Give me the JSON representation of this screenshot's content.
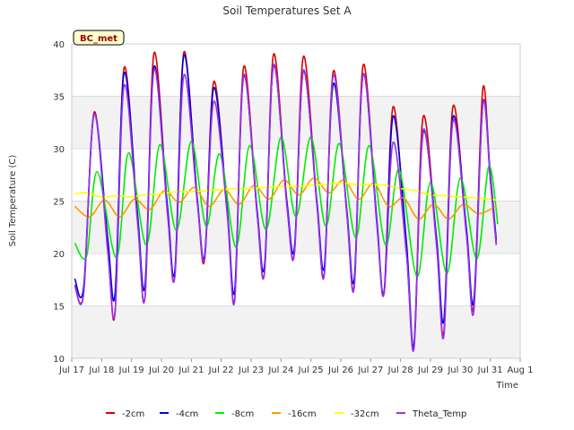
{
  "chart_data": {
    "type": "line",
    "title": "Soil Temperatures Set A",
    "xlabel": "Time",
    "ylabel": "Soil Temperature (C)",
    "badge": "BC_met",
    "xlim": [
      17,
      32
    ],
    "ylim": [
      10,
      40
    ],
    "x_ticks": [
      {
        "value": 17,
        "label": "Jul 17"
      },
      {
        "value": 18,
        "label": "Jul 18"
      },
      {
        "value": 19,
        "label": "Jul 19"
      },
      {
        "value": 20,
        "label": "Jul 20"
      },
      {
        "value": 21,
        "label": "Jul 21"
      },
      {
        "value": 22,
        "label": "Jul 22"
      },
      {
        "value": 23,
        "label": "Jul 23"
      },
      {
        "value": 24,
        "label": "Jul 24"
      },
      {
        "value": 25,
        "label": "Jul 25"
      },
      {
        "value": 26,
        "label": "Jul 26"
      },
      {
        "value": 27,
        "label": "Jul 27"
      },
      {
        "value": 28,
        "label": "Jul 28"
      },
      {
        "value": 29,
        "label": "Jul 29"
      },
      {
        "value": 30,
        "label": "Jul 30"
      },
      {
        "value": 31,
        "label": "Jul 31"
      },
      {
        "value": 32,
        "label": "Aug 1"
      }
    ],
    "y_ticks": [
      10,
      15,
      20,
      25,
      30,
      35,
      40
    ],
    "grid": "horizontal",
    "background_bands": true,
    "legend_position": "bottom",
    "series": [
      {
        "name": "-2cm",
        "color": "#dd0000",
        "points": [
          [
            17.1,
            17.0
          ],
          [
            17.4,
            16.3
          ],
          [
            17.75,
            33.5
          ],
          [
            18.2,
            20.6
          ],
          [
            18.45,
            14.4
          ],
          [
            18.75,
            37.7
          ],
          [
            19.2,
            23.4
          ],
          [
            19.45,
            15.9
          ],
          [
            19.75,
            39.1
          ],
          [
            20.2,
            24.2
          ],
          [
            20.45,
            17.9
          ],
          [
            20.75,
            39.2
          ],
          [
            21.2,
            25.0
          ],
          [
            21.45,
            19.5
          ],
          [
            21.75,
            36.4
          ],
          [
            22.2,
            24.0
          ],
          [
            22.45,
            15.7
          ],
          [
            22.75,
            37.8
          ],
          [
            23.2,
            23.9
          ],
          [
            23.45,
            18.3
          ],
          [
            23.75,
            39.0
          ],
          [
            24.2,
            24.6
          ],
          [
            24.45,
            20.2
          ],
          [
            24.75,
            38.8
          ],
          [
            25.2,
            24.8
          ],
          [
            25.45,
            18.2
          ],
          [
            25.75,
            37.4
          ],
          [
            26.2,
            23.9
          ],
          [
            26.45,
            17.0
          ],
          [
            26.75,
            38.0
          ],
          [
            27.2,
            23.1
          ],
          [
            27.45,
            16.3
          ],
          [
            27.75,
            34.0
          ],
          [
            28.2,
            20.0
          ],
          [
            28.45,
            11.4
          ],
          [
            28.75,
            33.0
          ],
          [
            29.2,
            21.0
          ],
          [
            29.45,
            12.6
          ],
          [
            29.75,
            34.0
          ],
          [
            30.2,
            22.0
          ],
          [
            30.45,
            15.0
          ],
          [
            30.75,
            35.7
          ],
          [
            31.0,
            27.0
          ],
          [
            31.2,
            21.0
          ]
        ]
      },
      {
        "name": "-4cm",
        "color": "#0000dd",
        "points": [
          [
            17.1,
            17.6
          ],
          [
            17.4,
            16.8
          ],
          [
            17.75,
            33.3
          ],
          [
            18.2,
            21.5
          ],
          [
            18.45,
            16.2
          ],
          [
            18.75,
            37.2
          ],
          [
            19.2,
            23.8
          ],
          [
            19.45,
            17.0
          ],
          [
            19.75,
            37.8
          ],
          [
            20.2,
            24.5
          ],
          [
            20.45,
            18.4
          ],
          [
            20.75,
            38.9
          ],
          [
            21.2,
            25.2
          ],
          [
            21.45,
            19.9
          ],
          [
            21.75,
            35.8
          ],
          [
            22.2,
            24.3
          ],
          [
            22.45,
            16.5
          ],
          [
            22.75,
            36.9
          ],
          [
            23.2,
            24.1
          ],
          [
            23.45,
            18.9
          ],
          [
            23.75,
            37.9
          ],
          [
            24.2,
            24.9
          ],
          [
            24.45,
            20.6
          ],
          [
            24.75,
            37.4
          ],
          [
            25.2,
            25.0
          ],
          [
            25.45,
            18.8
          ],
          [
            25.75,
            36.2
          ],
          [
            26.2,
            24.1
          ],
          [
            26.45,
            17.6
          ],
          [
            26.75,
            37.1
          ],
          [
            27.2,
            23.4
          ],
          [
            27.45,
            16.4
          ],
          [
            27.75,
            33.1
          ],
          [
            28.2,
            20.9
          ],
          [
            28.45,
            11.3
          ],
          [
            28.75,
            31.5
          ],
          [
            29.2,
            21.5
          ],
          [
            29.45,
            13.7
          ],
          [
            29.75,
            33.0
          ],
          [
            30.2,
            22.4
          ],
          [
            30.45,
            15.5
          ],
          [
            30.75,
            34.3
          ],
          [
            31.0,
            27.5
          ],
          [
            31.2,
            21.3
          ]
        ]
      },
      {
        "name": "-8cm",
        "color": "#00ee00",
        "points": [
          [
            17.1,
            21.0
          ],
          [
            17.5,
            19.8
          ],
          [
            17.85,
            27.8
          ],
          [
            18.5,
            19.6
          ],
          [
            18.9,
            29.6
          ],
          [
            19.5,
            20.8
          ],
          [
            19.95,
            30.4
          ],
          [
            20.5,
            22.2
          ],
          [
            21.0,
            30.7
          ],
          [
            21.5,
            22.6
          ],
          [
            21.95,
            29.5
          ],
          [
            22.5,
            20.6
          ],
          [
            22.95,
            30.3
          ],
          [
            23.5,
            22.3
          ],
          [
            24.0,
            31.1
          ],
          [
            24.5,
            23.5
          ],
          [
            25.0,
            31.1
          ],
          [
            25.5,
            22.6
          ],
          [
            25.95,
            30.5
          ],
          [
            26.5,
            21.5
          ],
          [
            26.95,
            30.3
          ],
          [
            27.5,
            20.8
          ],
          [
            27.95,
            28.0
          ],
          [
            28.55,
            17.8
          ],
          [
            29.0,
            26.8
          ],
          [
            29.55,
            18.1
          ],
          [
            30.0,
            27.2
          ],
          [
            30.55,
            19.5
          ],
          [
            30.95,
            28.3
          ],
          [
            31.25,
            22.8
          ]
        ]
      },
      {
        "name": "-16cm",
        "color": "#ff9900",
        "points": [
          [
            17.1,
            24.5
          ],
          [
            17.6,
            23.5
          ],
          [
            18.1,
            25.1
          ],
          [
            18.6,
            23.5
          ],
          [
            19.1,
            25.2
          ],
          [
            19.6,
            24.2
          ],
          [
            20.1,
            26.0
          ],
          [
            20.6,
            24.9
          ],
          [
            21.1,
            26.3
          ],
          [
            21.6,
            24.5
          ],
          [
            22.1,
            26.1
          ],
          [
            22.6,
            24.7
          ],
          [
            23.1,
            26.5
          ],
          [
            23.6,
            25.2
          ],
          [
            24.1,
            27.0
          ],
          [
            24.6,
            25.6
          ],
          [
            25.1,
            27.2
          ],
          [
            25.6,
            25.8
          ],
          [
            26.1,
            27.0
          ],
          [
            26.6,
            25.2
          ],
          [
            27.1,
            26.7
          ],
          [
            27.6,
            24.5
          ],
          [
            28.1,
            25.3
          ],
          [
            28.6,
            23.3
          ],
          [
            29.1,
            24.7
          ],
          [
            29.6,
            23.3
          ],
          [
            30.1,
            24.7
          ],
          [
            30.6,
            23.8
          ],
          [
            31.2,
            24.5
          ]
        ]
      },
      {
        "name": "-32cm",
        "color": "#ffff00",
        "points": [
          [
            17.1,
            25.7
          ],
          [
            17.5,
            25.8
          ],
          [
            18.0,
            25.4
          ],
          [
            18.5,
            25.5
          ],
          [
            19.0,
            25.4
          ],
          [
            19.5,
            25.6
          ],
          [
            20.0,
            25.7
          ],
          [
            20.5,
            25.9
          ],
          [
            21.0,
            25.9
          ],
          [
            21.5,
            26.0
          ],
          [
            22.0,
            26.1
          ],
          [
            22.5,
            26.2
          ],
          [
            23.0,
            26.2
          ],
          [
            23.5,
            26.3
          ],
          [
            24.0,
            26.4
          ],
          [
            24.5,
            26.4
          ],
          [
            25.0,
            26.5
          ],
          [
            25.5,
            26.6
          ],
          [
            26.0,
            26.7
          ],
          [
            26.5,
            26.6
          ],
          [
            27.0,
            26.6
          ],
          [
            27.5,
            26.5
          ],
          [
            28.0,
            26.2
          ],
          [
            28.5,
            26.0
          ],
          [
            29.0,
            25.6
          ],
          [
            29.5,
            25.5
          ],
          [
            30.0,
            25.4
          ],
          [
            30.5,
            25.3
          ],
          [
            31.0,
            25.2
          ],
          [
            31.2,
            25.1
          ]
        ]
      },
      {
        "name": "Theta_Temp",
        "color": "#9933ee",
        "points": [
          [
            17.1,
            16.9
          ],
          [
            17.4,
            16.2
          ],
          [
            17.75,
            33.3
          ],
          [
            18.2,
            20.3
          ],
          [
            18.45,
            14.5
          ],
          [
            18.75,
            36.0
          ],
          [
            19.2,
            23.0
          ],
          [
            19.45,
            15.8
          ],
          [
            19.75,
            37.5
          ],
          [
            20.2,
            23.8
          ],
          [
            20.45,
            17.8
          ],
          [
            20.75,
            37.0
          ],
          [
            21.2,
            24.8
          ],
          [
            21.45,
            19.6
          ],
          [
            21.75,
            34.5
          ],
          [
            22.2,
            23.8
          ],
          [
            22.45,
            15.5
          ],
          [
            22.75,
            37.0
          ],
          [
            23.2,
            23.7
          ],
          [
            23.45,
            18.2
          ],
          [
            23.75,
            38.0
          ],
          [
            24.2,
            24.4
          ],
          [
            24.45,
            20.0
          ],
          [
            24.75,
            37.5
          ],
          [
            25.2,
            24.6
          ],
          [
            25.45,
            18.0
          ],
          [
            25.75,
            37.0
          ],
          [
            26.2,
            23.7
          ],
          [
            26.45,
            16.8
          ],
          [
            26.75,
            37.1
          ],
          [
            27.2,
            22.9
          ],
          [
            27.45,
            16.2
          ],
          [
            27.75,
            30.6
          ],
          [
            28.2,
            19.8
          ],
          [
            28.45,
            11.0
          ],
          [
            28.75,
            31.7
          ],
          [
            29.2,
            20.8
          ],
          [
            29.45,
            12.2
          ],
          [
            29.75,
            32.6
          ],
          [
            30.2,
            21.8
          ],
          [
            30.45,
            14.5
          ],
          [
            30.75,
            34.2
          ],
          [
            31.0,
            27.0
          ],
          [
            31.2,
            20.8
          ]
        ]
      }
    ]
  }
}
